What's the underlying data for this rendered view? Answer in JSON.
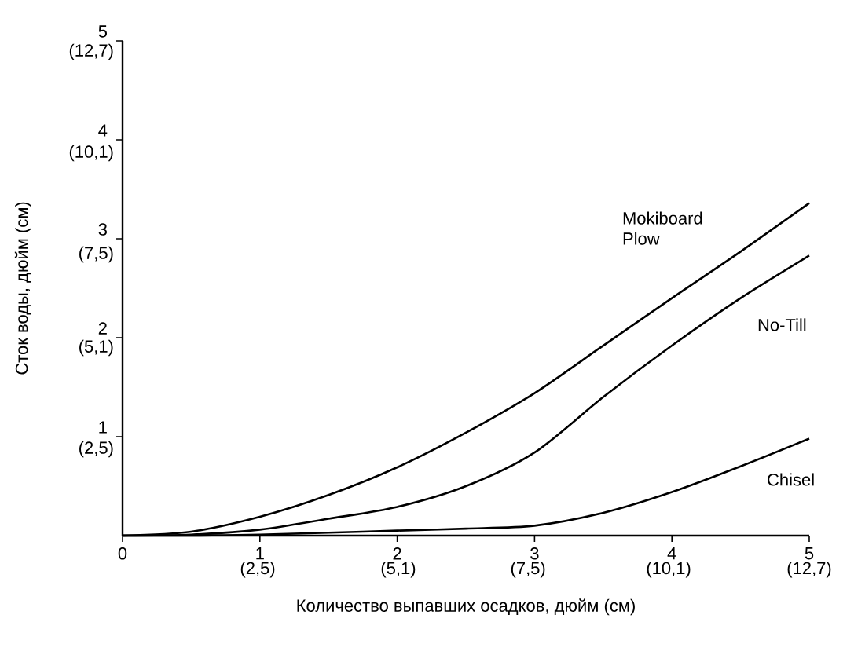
{
  "chart_data": {
    "type": "line",
    "xlabel": "Количество выпавших осадков, дюйм (см)",
    "ylabel": "Сток воды, дюйм (см)",
    "x": [
      0,
      0.5,
      1,
      1.5,
      2,
      2.5,
      3,
      3.5,
      4,
      4.5,
      5
    ],
    "series": [
      {
        "name": "Mokiboard Plow",
        "color": "#000000",
        "axis": "y2",
        "values": [
          0,
          0.04,
          0.19,
          0.41,
          0.69,
          1.04,
          1.44,
          1.92,
          2.4,
          2.87,
          3.36
        ]
      },
      {
        "name": "No-Till",
        "color": "#000000",
        "axis": "y2",
        "values": [
          0,
          0.01,
          0.06,
          0.17,
          0.29,
          0.5,
          0.84,
          1.4,
          1.92,
          2.4,
          2.83
        ]
      },
      {
        "name": "Chisel",
        "color": "#000000",
        "axis": "y2",
        "values": [
          0,
          0.0,
          0.01,
          0.03,
          0.05,
          0.07,
          0.1,
          0.23,
          0.44,
          0.7,
          0.98
        ]
      }
    ],
    "xlim": [
      0,
      5
    ],
    "y2lim": [
      0,
      5
    ],
    "xticks": [
      0,
      1,
      2,
      3,
      4,
      5
    ],
    "y2ticks": [
      1,
      2,
      3,
      4,
      5
    ],
    "x2lim": [
      0,
      12.7
    ],
    "x2ticks": [
      {
        "value": 2.5,
        "label": "(2,5)"
      },
      {
        "value": 5.1,
        "label": "(5,1)"
      },
      {
        "value": 7.5,
        "label": "(7,5)"
      },
      {
        "value": 10.1,
        "label": "(10,1)"
      },
      {
        "value": 12.7,
        "label": "(12,7)"
      }
    ],
    "ylim": [
      0,
      12.7
    ],
    "yticks": [
      {
        "value": 2.5,
        "label": "(2,5)"
      },
      {
        "value": 5.1,
        "label": "(5,1)"
      },
      {
        "value": 7.5,
        "label": "(7,5)"
      },
      {
        "value": 10.1,
        "label": "(10,1)"
      },
      {
        "value": 12.7,
        "label": "(12,7)"
      }
    ],
    "grid": false,
    "legend": false,
    "marker": "none",
    "line_style": "solid"
  }
}
